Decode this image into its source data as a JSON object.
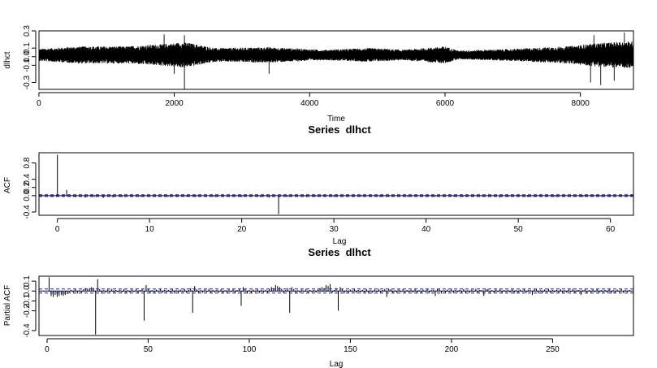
{
  "chart_data": [
    {
      "type": "line",
      "title": "",
      "xlabel": "Time",
      "ylabel": "dlhct",
      "xlim": [
        1,
        8784
      ],
      "ylim": [
        -0.38,
        0.3
      ],
      "xticks": [
        0,
        2000,
        4000,
        6000,
        8000
      ],
      "xtick_labels": [
        "0",
        "2000",
        "4000",
        "6000",
        "8000"
      ],
      "yticks": [
        -0.3,
        -0.1,
        0.0,
        0.1,
        0.3
      ],
      "ytick_labels": [
        "-0.3",
        "-0.1",
        "0.0",
        "0.1",
        "0.3"
      ],
      "series": [
        {
          "name": "dlhct",
          "baseline": 0.02,
          "envelope": [
            {
              "t": 0,
              "amp": 0.07
            },
            {
              "t": 600,
              "amp": 0.1
            },
            {
              "t": 1300,
              "amp": 0.1
            },
            {
              "t": 1900,
              "amp": 0.13
            },
            {
              "t": 2150,
              "amp": 0.15
            },
            {
              "t": 2600,
              "amp": 0.08
            },
            {
              "t": 3400,
              "amp": 0.09
            },
            {
              "t": 4200,
              "amp": 0.06
            },
            {
              "t": 4900,
              "amp": 0.08
            },
            {
              "t": 5400,
              "amp": 0.06
            },
            {
              "t": 6000,
              "amp": 0.1
            },
            {
              "t": 6200,
              "amp": 0.05
            },
            {
              "t": 7000,
              "amp": 0.07
            },
            {
              "t": 7800,
              "amp": 0.1
            },
            {
              "t": 8300,
              "amp": 0.14
            },
            {
              "t": 8784,
              "amp": 0.16
            }
          ],
          "spikes": [
            {
              "t": 1850,
              "v": 0.26
            },
            {
              "t": 2150,
              "v": 0.25
            },
            {
              "t": 2150,
              "v": -0.38
            },
            {
              "t": 2000,
              "v": -0.2
            },
            {
              "t": 3400,
              "v": -0.2
            },
            {
              "t": 8200,
              "v": 0.25
            },
            {
              "t": 8650,
              "v": 0.28
            },
            {
              "t": 8300,
              "v": -0.33
            },
            {
              "t": 8150,
              "v": -0.3
            },
            {
              "t": 8500,
              "v": -0.28
            }
          ]
        }
      ]
    },
    {
      "type": "bar",
      "title": "Series  dlhct",
      "xlabel": "Lag",
      "ylabel": "ACF",
      "xlim": [
        -2,
        62.5
      ],
      "ylim": [
        -0.48,
        1.05
      ],
      "xticks": [
        0,
        10,
        20,
        30,
        40,
        50,
        60
      ],
      "xtick_labels": [
        "0",
        "10",
        "20",
        "30",
        "40",
        "50",
        "60"
      ],
      "yticks": [
        -0.4,
        0.0,
        0.2,
        0.4,
        0.8
      ],
      "ytick_labels": [
        "-0.4",
        "0.0",
        "0.2",
        "0.4",
        "0.8"
      ],
      "conf_band": 0.021,
      "lags": [
        0,
        1,
        2,
        3,
        4,
        5,
        6,
        7,
        8,
        9,
        10,
        11,
        12,
        13,
        14,
        15,
        16,
        17,
        18,
        19,
        20,
        21,
        22,
        23,
        24,
        25,
        26,
        27,
        28,
        29,
        30,
        31,
        32,
        33,
        34,
        35,
        36,
        37,
        38,
        39,
        40,
        41,
        42,
        43,
        44,
        45,
        46,
        47,
        48,
        49,
        50,
        51,
        52,
        53,
        54,
        55,
        56,
        57,
        58,
        59,
        60
      ],
      "values": [
        1.0,
        0.14,
        -0.04,
        -0.05,
        -0.03,
        -0.05,
        -0.04,
        -0.03,
        -0.02,
        -0.03,
        -0.02,
        -0.02,
        -0.03,
        -0.02,
        -0.02,
        -0.03,
        -0.02,
        -0.03,
        -0.02,
        -0.02,
        -0.03,
        -0.02,
        -0.03,
        -0.05,
        -0.45,
        -0.03,
        -0.02,
        -0.03,
        -0.02,
        -0.02,
        -0.03,
        -0.02,
        -0.03,
        -0.02,
        -0.02,
        -0.03,
        -0.02,
        -0.02,
        -0.03,
        -0.02,
        -0.02,
        -0.03,
        -0.02,
        -0.02,
        -0.03,
        -0.02,
        -0.02,
        -0.03,
        -0.05,
        -0.02,
        -0.02,
        -0.03,
        -0.02,
        -0.02,
        -0.03,
        -0.02,
        -0.02,
        -0.03,
        -0.02,
        -0.02,
        -0.03
      ]
    },
    {
      "type": "bar",
      "title": "Series  dlhct",
      "xlabel": "Lag",
      "ylabel": "Partial ACF",
      "xlim": [
        -4,
        290
      ],
      "ylim": [
        -0.45,
        0.15
      ],
      "xticks": [
        0,
        50,
        100,
        150,
        200,
        250
      ],
      "xtick_labels": [
        "0",
        "50",
        "100",
        "150",
        "200",
        "250"
      ],
      "yticks": [
        -0.4,
        -0.2,
        -0.1,
        0.0,
        0.1
      ],
      "ytick_labels": [
        "-0.4",
        "-0.2",
        "-0.1",
        "0.0",
        "0.1"
      ],
      "conf_band": 0.021,
      "max_lag": 288,
      "values_by_lag": {
        "1": 0.14,
        "2": -0.05,
        "3": -0.06,
        "4": -0.04,
        "5": -0.06,
        "6": -0.05,
        "7": -0.04,
        "8": -0.05,
        "9": -0.04,
        "10": -0.03,
        "18": 0.02,
        "19": 0.03,
        "20": 0.02,
        "21": 0.03,
        "22": 0.04,
        "23": 0.03,
        "24": -0.44,
        "25": 0.12,
        "47": 0.02,
        "48": -0.3,
        "49": 0.06,
        "71": 0.03,
        "72": -0.22,
        "73": 0.05,
        "95": 0.02,
        "96": -0.15,
        "97": 0.04,
        "110": 0.02,
        "111": 0.04,
        "112": 0.03,
        "113": 0.06,
        "114": 0.05,
        "115": 0.04,
        "119": 0.03,
        "120": -0.22,
        "121": 0.04,
        "135": 0.03,
        "136": 0.04,
        "137": 0.03,
        "138": 0.06,
        "139": 0.05,
        "140": 0.07,
        "143": 0.03,
        "144": -0.2,
        "145": 0.04,
        "167": 0.02,
        "168": -0.06,
        "169": 0.02,
        "191": 0.01,
        "192": -0.05,
        "193": 0.02,
        "215": 0.01,
        "216": -0.05,
        "217": 0.02,
        "239": 0.01,
        "240": -0.04,
        "241": 0.02,
        "263": 0.01,
        "264": -0.04,
        "265": 0.01
      },
      "default_small_values": [
        0.012,
        -0.015,
        0.02,
        -0.025,
        0.008,
        -0.018,
        0.015,
        -0.01,
        0.022,
        -0.02,
        0.01,
        -0.012
      ]
    }
  ]
}
